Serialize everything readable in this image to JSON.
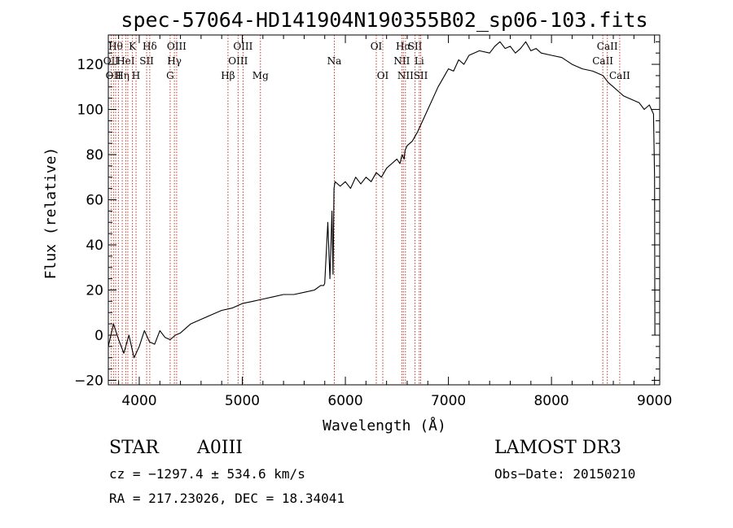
{
  "chart_data": {
    "type": "line",
    "title": "spec-57064-HD141904N190355B02_sp06-103.fits",
    "xlabel": "Wavelength (Å)",
    "ylabel": "Flux (relative)",
    "xlim": [
      3700,
      9050
    ],
    "ylim": [
      -22,
      133
    ],
    "xticks": [
      4000,
      5000,
      6000,
      7000,
      8000,
      9000
    ],
    "yticks": [
      -20,
      0,
      20,
      40,
      60,
      80,
      100,
      120
    ],
    "series": [
      {
        "name": "flux",
        "color": "#000000",
        "x": [
          3700,
          3750,
          3800,
          3850,
          3900,
          3950,
          4000,
          4050,
          4100,
          4150,
          4200,
          4250,
          4300,
          4350,
          4400,
          4500,
          4600,
          4700,
          4800,
          4900,
          5000,
          5100,
          5200,
          5300,
          5400,
          5500,
          5600,
          5700,
          5760,
          5790,
          5800,
          5830,
          5850,
          5870,
          5880,
          5890,
          5900,
          5950,
          6000,
          6050,
          6100,
          6150,
          6200,
          6250,
          6300,
          6350,
          6400,
          6450,
          6500,
          6530,
          6550,
          6570,
          6580,
          6600,
          6650,
          6700,
          6750,
          6800,
          6850,
          6900,
          6950,
          7000,
          7050,
          7100,
          7150,
          7200,
          7300,
          7400,
          7450,
          7500,
          7550,
          7600,
          7650,
          7700,
          7750,
          7800,
          7850,
          7900,
          8000,
          8100,
          8200,
          8300,
          8400,
          8500,
          8550,
          8600,
          8650,
          8700,
          8750,
          8800,
          8850,
          8900,
          8950,
          8990,
          9000,
          9003
        ],
        "y": [
          -5,
          5,
          -2,
          -8,
          0,
          -10,
          -5,
          2,
          -3,
          -4,
          2,
          -1,
          -2,
          0,
          1,
          5,
          7,
          9,
          11,
          12,
          14,
          15,
          16,
          17,
          18,
          18,
          19,
          20,
          22,
          22,
          23,
          50,
          25,
          55,
          27,
          65,
          68,
          66,
          68,
          65,
          70,
          67,
          70,
          68,
          72,
          70,
          74,
          76,
          78,
          76,
          80,
          78,
          82,
          84,
          86,
          90,
          95,
          100,
          105,
          110,
          114,
          118,
          117,
          122,
          120,
          124,
          126,
          125,
          128,
          130,
          127,
          128,
          125,
          127,
          130,
          126,
          127,
          125,
          124,
          123,
          120,
          118,
          117,
          115,
          112,
          110,
          108,
          106,
          105,
          104,
          103,
          100,
          102,
          98,
          70,
          0
        ]
      }
    ],
    "lines": [
      {
        "x": 3727,
        "label": "OII",
        "row": 1
      },
      {
        "x": 3750,
        "label": "OII",
        "row": 2
      },
      {
        "x": 3771,
        "label": "Hθ",
        "row": 0
      },
      {
        "x": 3798,
        "label": "",
        "row": 0
      },
      {
        "x": 3835,
        "label": "Hη",
        "row": 2
      },
      {
        "x": 3869,
        "label": "HeI",
        "row": 1
      },
      {
        "x": 3889,
        "label": "",
        "row": 0
      },
      {
        "x": 3934,
        "label": "K",
        "row": 0
      },
      {
        "x": 3969,
        "label": "H",
        "row": 2
      },
      {
        "x": 4072,
        "label": "SII",
        "row": 1
      },
      {
        "x": 4102,
        "label": "Hδ",
        "row": 0
      },
      {
        "x": 4300,
        "label": "G",
        "row": 2
      },
      {
        "x": 4341,
        "label": "Hγ",
        "row": 1
      },
      {
        "x": 4363,
        "label": "OIII",
        "row": 0
      },
      {
        "x": 4861,
        "label": "Hβ",
        "row": 2
      },
      {
        "x": 4959,
        "label": "OIII",
        "row": 1
      },
      {
        "x": 5007,
        "label": "OIII",
        "row": 0
      },
      {
        "x": 5176,
        "label": "Mg",
        "row": 2
      },
      {
        "x": 5893,
        "label": "Na",
        "row": 1
      },
      {
        "x": 6300,
        "label": "OI",
        "row": 0
      },
      {
        "x": 6363,
        "label": "OI",
        "row": 2
      },
      {
        "x": 6548,
        "label": "NII",
        "row": 1
      },
      {
        "x": 6563,
        "label": "Hα",
        "row": 0
      },
      {
        "x": 6583,
        "label": "NII",
        "row": 2
      },
      {
        "x": 6676,
        "label": "SII",
        "row": 0
      },
      {
        "x": 6717,
        "label": "Li",
        "row": 1
      },
      {
        "x": 6731,
        "label": "SII",
        "row": 2
      },
      {
        "x": 8498,
        "label": "CaII",
        "row": 1
      },
      {
        "x": 8542,
        "label": "CaII",
        "row": 0
      },
      {
        "x": 8662,
        "label": "CaII",
        "row": 2
      }
    ]
  },
  "footer": {
    "object_type": "STAR",
    "spectral_class": "A0III",
    "survey": "LAMOST DR3",
    "velocity": "cz = −1297.4 ± 534.6 km/s",
    "obs_date": "Obs−Date: 20150210",
    "coordinates": "RA = 217.23026, DEC =  18.34041"
  }
}
